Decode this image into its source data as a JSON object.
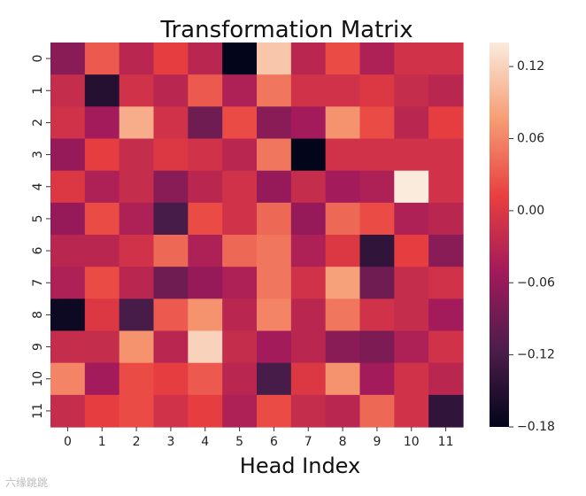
{
  "chart_data": {
    "type": "heatmap",
    "title": "Transformation Matrix",
    "xlabel": "Head Index",
    "ylabel": "",
    "x_categories": [
      "0",
      "1",
      "2",
      "3",
      "4",
      "5",
      "6",
      "7",
      "8",
      "9",
      "10",
      "11"
    ],
    "y_categories": [
      "0",
      "1",
      "2",
      "3",
      "4",
      "5",
      "6",
      "7",
      "8",
      "9",
      "10",
      "11"
    ],
    "values": [
      [
        -0.07,
        0.03,
        -0.03,
        0.01,
        -0.03,
        -0.18,
        0.11,
        -0.03,
        0.02,
        -0.04,
        -0.01,
        -0.01
      ],
      [
        -0.02,
        -0.15,
        -0.01,
        -0.03,
        0.03,
        -0.04,
        0.05,
        -0.01,
        -0.01,
        0.0,
        -0.02,
        -0.03
      ],
      [
        -0.01,
        -0.05,
        0.09,
        -0.01,
        -0.09,
        0.02,
        -0.07,
        -0.05,
        0.07,
        0.02,
        -0.03,
        0.01
      ],
      [
        -0.06,
        0.01,
        -0.02,
        0.0,
        -0.01,
        -0.03,
        0.05,
        -0.18,
        -0.01,
        -0.01,
        -0.01,
        -0.01
      ],
      [
        0.0,
        -0.04,
        -0.02,
        -0.07,
        -0.03,
        -0.01,
        -0.06,
        -0.02,
        -0.05,
        -0.04,
        0.14,
        -0.01
      ],
      [
        -0.06,
        0.02,
        -0.04,
        -0.12,
        0.02,
        -0.01,
        0.04,
        -0.06,
        0.04,
        0.02,
        -0.04,
        -0.03
      ],
      [
        -0.03,
        -0.03,
        -0.01,
        0.04,
        -0.04,
        0.04,
        0.05,
        -0.04,
        0.0,
        -0.14,
        0.01,
        -0.07
      ],
      [
        -0.04,
        0.02,
        -0.03,
        -0.09,
        -0.06,
        -0.04,
        0.05,
        -0.01,
        0.08,
        -0.09,
        -0.02,
        -0.01
      ],
      [
        -0.17,
        0.0,
        -0.12,
        0.03,
        0.07,
        -0.03,
        0.06,
        -0.03,
        0.05,
        -0.01,
        -0.02,
        -0.05
      ],
      [
        -0.02,
        -0.02,
        0.07,
        -0.03,
        0.12,
        -0.02,
        -0.05,
        -0.03,
        -0.07,
        -0.08,
        -0.04,
        -0.01
      ],
      [
        0.06,
        -0.05,
        0.02,
        0.01,
        0.03,
        -0.03,
        -0.12,
        0.0,
        0.07,
        -0.05,
        -0.01,
        -0.03
      ],
      [
        -0.02,
        0.01,
        0.02,
        -0.01,
        0.01,
        -0.04,
        0.02,
        -0.02,
        -0.03,
        0.04,
        -0.01,
        -0.14
      ]
    ],
    "colorbar": {
      "range": [
        -0.18,
        0.14
      ],
      "ticks": [
        0.12,
        0.06,
        0.0,
        -0.06,
        -0.12,
        -0.18
      ],
      "tick_labels": [
        "0.12",
        "0.06",
        "0.00",
        "−0.06",
        "−0.12",
        "−0.18"
      ],
      "colormap": "rocket",
      "stops": [
        "#03051a",
        "#4c1d4b",
        "#a11a5b",
        "#e83f3f",
        "#f69c73",
        "#faebdd"
      ]
    },
    "grid": false,
    "legend": "colorbar-right"
  },
  "watermark": "六缘跳跳"
}
